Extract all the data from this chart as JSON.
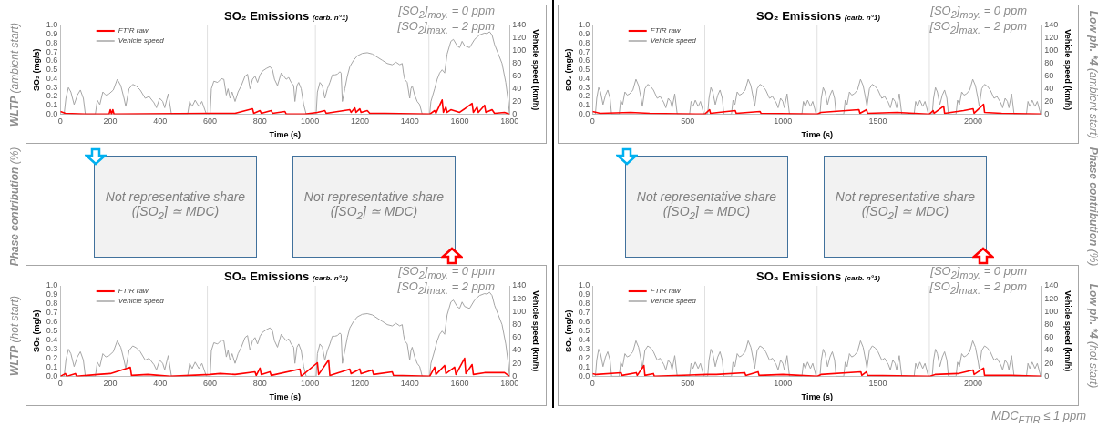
{
  "chart_data": [
    {
      "type": "line",
      "title": "SO₂ Emissions",
      "subtitle": "(carb. n°1)",
      "xlabel": "Time (s)",
      "ylabel": "SO₂ (mg/s)",
      "y2label": "Vehicle speed (km/h)",
      "legend": "top left",
      "marker": "none",
      "annotations": [
        "[SO$_{2}$]$_{moy.}$ = 0 ppm",
        "[SO$_{2}$]$_{max.}$ = 2 ppm",
        "WLTP (ambient start)"
      ],
      "xlim": [
        0,
        1800
      ],
      "xticks": [
        0,
        200,
        400,
        600,
        800,
        1000,
        1200,
        1400,
        1600,
        1800
      ],
      "ylim": [
        0,
        1
      ],
      "yticks": [
        {
          "value": 0,
          "label": "0.0"
        },
        {
          "value": 0.1,
          "label": "0.1"
        },
        {
          "value": 0.2,
          "label": "0.2"
        },
        {
          "value": 0.3,
          "label": "0.3"
        },
        {
          "value": 0.4,
          "label": "0.4"
        },
        {
          "value": 0.5,
          "label": "0.5"
        },
        {
          "value": 0.6,
          "label": "0.6"
        },
        {
          "value": 0.7,
          "label": "0.7"
        },
        {
          "value": 0.8,
          "label": "0.8"
        },
        {
          "value": 0.9,
          "label": "0.9"
        },
        {
          "value": 1,
          "label": "1.0"
        }
      ],
      "y2lim": [
        0,
        140
      ],
      "y2ticks": [
        0,
        20,
        40,
        60,
        80,
        100,
        120,
        140
      ],
      "ref_lines": [
        {
          "axis": "x",
          "value": 589,
          "color": "#e0e0e0"
        },
        {
          "axis": "x",
          "value": 1022,
          "color": "#e0e0e0"
        },
        {
          "axis": "x",
          "value": 1477,
          "color": "#e0e0e0"
        }
      ],
      "series": [
        {
          "name": "FTIR raw",
          "color": "#ff0000",
          "x": [
            0,
            10,
            20,
            100,
            195,
            200,
            205,
            210,
            215,
            600,
            700,
            770,
            775,
            800,
            805,
            845,
            850,
            900,
            905,
            980,
            1030,
            1060,
            1065,
            1160,
            1165,
            1180,
            1185,
            1200,
            1205,
            1230,
            1240,
            1300,
            1480,
            1500,
            1505,
            1530,
            1535,
            1545,
            1550,
            1565,
            1600,
            1650,
            1655,
            1670,
            1675,
            1700,
            1705,
            1730,
            1740,
            1780,
            1800
          ],
          "values": [
            0.03,
            0.02,
            0.01,
            0,
            0,
            0.05,
            0,
            0.05,
            0,
            0.01,
            0.01,
            0.06,
            0.01,
            0.04,
            0.01,
            0.04,
            0.01,
            0.03,
            0,
            0,
            0.02,
            0.04,
            0.01,
            0.05,
            0.02,
            0.07,
            0.02,
            0.06,
            0.02,
            0.04,
            0.01,
            0.01,
            0,
            0.04,
            0.01,
            0.16,
            0.02,
            0.08,
            0.02,
            0.05,
            0.02,
            0.12,
            0.02,
            0.08,
            0.02,
            0.1,
            0.02,
            0.05,
            0.01,
            0.02,
            0
          ]
        },
        {
          "name": "Vehicle speed",
          "color": "#a6a6a6",
          "axis": "y2",
          "x": [
            0,
            15,
            22,
            32,
            42,
            55,
            68,
            80,
            92,
            100,
            140,
            148,
            158,
            170,
            182,
            195,
            212,
            228,
            242,
            255,
            262,
            275,
            290,
            305,
            320,
            340,
            355,
            375,
            385,
            398,
            410,
            418,
            432,
            445,
            510,
            518,
            528,
            540,
            555,
            567,
            585,
            600,
            605,
            615,
            630,
            645,
            655,
            665,
            672,
            680,
            688,
            700,
            712,
            725,
            740,
            750,
            760,
            770,
            780,
            790,
            800,
            810,
            825,
            840,
            850,
            858,
            870,
            885,
            895,
            905,
            915,
            925,
            935,
            940,
            948,
            955,
            965,
            975,
            985,
            1025,
            1030,
            1040,
            1050,
            1060,
            1070,
            1080,
            1090,
            1100,
            1110,
            1120,
            1125,
            1130,
            1140,
            1150,
            1160,
            1175,
            1190,
            1210,
            1230,
            1250,
            1270,
            1290,
            1310,
            1330,
            1345,
            1360,
            1370,
            1375,
            1380,
            1390,
            1400,
            1405,
            1410,
            1420,
            1430,
            1440,
            1450,
            1480,
            1485,
            1500,
            1510,
            1520,
            1530,
            1540,
            1550,
            1565,
            1575,
            1590,
            1600,
            1610,
            1620,
            1640,
            1660,
            1680,
            1700,
            1710,
            1720,
            1730,
            1740,
            1755,
            1770,
            1785,
            1795,
            1800
          ],
          "values": [
            0,
            0,
            25,
            42,
            35,
            15,
            30,
            38,
            25,
            0,
            0,
            22,
            15,
            35,
            30,
            32,
            38,
            55,
            45,
            25,
            12,
            40,
            47,
            44,
            38,
            25,
            28,
            18,
            10,
            25,
            20,
            10,
            32,
            0,
            0,
            20,
            12,
            22,
            12,
            20,
            0,
            0,
            40,
            52,
            50,
            56,
            55,
            30,
            40,
            25,
            35,
            20,
            35,
            45,
            60,
            63,
            40,
            55,
            60,
            50,
            62,
            68,
            72,
            75,
            70,
            55,
            45,
            65,
            60,
            55,
            58,
            50,
            45,
            20,
            45,
            50,
            40,
            15,
            0,
            0,
            35,
            50,
            45,
            25,
            40,
            50,
            62,
            62,
            63,
            67,
            65,
            20,
            40,
            60,
            75,
            85,
            92,
            96,
            97,
            95,
            90,
            85,
            80,
            78,
            82,
            78,
            80,
            65,
            55,
            50,
            25,
            40,
            45,
            30,
            20,
            15,
            0,
            0,
            20,
            40,
            55,
            65,
            70,
            65,
            95,
            115,
            118,
            108,
            105,
            115,
            108,
            105,
            118,
            125,
            128,
            127,
            130,
            125,
            110,
            95,
            80,
            50,
            20,
            0
          ]
        }
      ]
    },
    {
      "type": "line",
      "title": "SO₂ Emissions",
      "subtitle": "(carb. n°1)",
      "xlabel": "Time (s)",
      "ylabel": "SO₂ (mg/s)",
      "y2label": "Vehicle speed (km/h)",
      "legend": "top left",
      "marker": "none",
      "annotations": [
        "[SO$_{2}$]$_{moy.}$ = 0 ppm",
        "[SO$_{2}$]$_{max.}$ = 2 ppm",
        "Low ph. *4 (ambient start)"
      ],
      "xlim": [
        0,
        2360
      ],
      "xticks": [
        0,
        500,
        1000,
        1500,
        2000
      ],
      "ylim": [
        0,
        1
      ],
      "yticks": [
        {
          "value": 0,
          "label": "0.0"
        },
        {
          "value": 0.1,
          "label": "0.1"
        },
        {
          "value": 0.2,
          "label": "0.2"
        },
        {
          "value": 0.3,
          "label": "0.3"
        },
        {
          "value": 0.4,
          "label": "0.4"
        },
        {
          "value": 0.5,
          "label": "0.5"
        },
        {
          "value": 0.6,
          "label": "0.6"
        },
        {
          "value": 0.7,
          "label": "0.7"
        },
        {
          "value": 0.8,
          "label": "0.8"
        },
        {
          "value": 0.9,
          "label": "0.9"
        },
        {
          "value": 1,
          "label": "1.0"
        }
      ],
      "y2lim": [
        0,
        140
      ],
      "y2ticks": [
        0,
        20,
        40,
        60,
        80,
        100,
        120,
        140
      ],
      "ref_lines": [
        {
          "axis": "x",
          "value": 590,
          "color": "#e0e0e0"
        },
        {
          "axis": "x",
          "value": 1180,
          "color": "#e0e0e0"
        },
        {
          "axis": "x",
          "value": 1770,
          "color": "#e0e0e0"
        }
      ],
      "series": [
        {
          "name": "FTIR raw",
          "color": "#ff0000",
          "x": [
            0,
            20,
            40,
            200,
            300,
            590,
            615,
            620,
            750,
            755,
            880,
            885,
            1180,
            1200,
            1400,
            1405,
            1440,
            1445,
            1600,
            1770,
            1790,
            1795,
            1845,
            1850,
            1950,
            2000,
            2005,
            2055,
            2060,
            2150,
            2360
          ],
          "values": [
            0.03,
            0.02,
            0.01,
            0.02,
            0.01,
            0,
            0.05,
            0.01,
            0.04,
            0.01,
            0.03,
            0.01,
            0,
            0.02,
            0.05,
            0.01,
            0.05,
            0.01,
            0.02,
            0,
            0.04,
            0.01,
            0.09,
            0.01,
            0.04,
            0.06,
            0.01,
            0.11,
            0.02,
            0.01,
            0
          ]
        },
        {
          "name": "Vehicle speed",
          "color": "#a6a6a6",
          "axis": "y2",
          "x": [
            0,
            15,
            22,
            32,
            42,
            55,
            68,
            80,
            92,
            100,
            140,
            148,
            158,
            170,
            182,
            195,
            212,
            228,
            242,
            255,
            262,
            275,
            290,
            305,
            320,
            340,
            355,
            375,
            385,
            398,
            410,
            418,
            432,
            445,
            510,
            518,
            528,
            540,
            555,
            567,
            585,
            590,
            605,
            612,
            622,
            632,
            645,
            658,
            670,
            682,
            690,
            730,
            738,
            748,
            760,
            772,
            785,
            802,
            818,
            832,
            845,
            852,
            865,
            880,
            895,
            910,
            930,
            945,
            965,
            975,
            988,
            1000,
            1008,
            1022,
            1035,
            1100,
            1108,
            1118,
            1130,
            1145,
            1157,
            1175,
            1180,
            1195,
            1202,
            1212,
            1222,
            1235,
            1248,
            1260,
            1272,
            1280,
            1320,
            1328,
            1338,
            1350,
            1362,
            1375,
            1392,
            1408,
            1422,
            1435,
            1442,
            1455,
            1470,
            1485,
            1500,
            1520,
            1535,
            1555,
            1565,
            1578,
            1590,
            1598,
            1612,
            1625,
            1690,
            1698,
            1708,
            1720,
            1735,
            1747,
            1765,
            1770,
            1785,
            1792,
            1802,
            1812,
            1825,
            1838,
            1850,
            1862,
            1870,
            1910,
            1918,
            1928,
            1940,
            1952,
            1965,
            1982,
            1998,
            2012,
            2025,
            2032,
            2045,
            2060,
            2075,
            2090,
            2110,
            2125,
            2145,
            2155,
            2168,
            2180,
            2188,
            2202,
            2215,
            2280,
            2288,
            2298,
            2310,
            2325,
            2337,
            2355
          ],
          "values": [
            0,
            0,
            25,
            42,
            35,
            15,
            30,
            38,
            25,
            0,
            0,
            22,
            15,
            35,
            30,
            32,
            38,
            55,
            45,
            25,
            12,
            40,
            47,
            44,
            38,
            25,
            28,
            18,
            10,
            25,
            20,
            10,
            32,
            0,
            0,
            20,
            12,
            22,
            12,
            20,
            0,
            0,
            0,
            25,
            42,
            35,
            15,
            30,
            38,
            25,
            0,
            0,
            22,
            15,
            35,
            30,
            32,
            38,
            55,
            45,
            25,
            12,
            40,
            47,
            44,
            38,
            25,
            28,
            18,
            10,
            25,
            20,
            10,
            32,
            0,
            0,
            20,
            12,
            22,
            12,
            20,
            0,
            0,
            0,
            25,
            42,
            35,
            15,
            30,
            38,
            25,
            0,
            0,
            22,
            15,
            35,
            30,
            32,
            38,
            55,
            45,
            25,
            12,
            40,
            47,
            44,
            38,
            25,
            28,
            18,
            10,
            25,
            20,
            10,
            32,
            0,
            0,
            20,
            12,
            22,
            12,
            20,
            0,
            0,
            0,
            25,
            42,
            35,
            15,
            30,
            38,
            25,
            0,
            0,
            22,
            15,
            35,
            30,
            32,
            38,
            55,
            45,
            25,
            12,
            40,
            47,
            44,
            38,
            25,
            28,
            18,
            10,
            25,
            20,
            10,
            32,
            0,
            0,
            20,
            12,
            22,
            12,
            20,
            0
          ]
        }
      ]
    },
    {
      "type": "other",
      "title": "Not representative share",
      "annotations": [
        "([SO$_{2}$] ≃ MDC)",
        "Phase contribution (%)"
      ]
    },
    {
      "type": "other",
      "title": "Not representative share",
      "annotations": [
        "([SO$_{2}$] ≃ MDC)"
      ]
    },
    {
      "type": "other",
      "title": "Not representative share",
      "annotations": [
        "([SO$_{2}$] ≃ MDC)"
      ]
    },
    {
      "type": "other",
      "title": "Not representative share",
      "annotations": [
        "([SO$_{2}$] ≃ MDC)",
        "Phase contribution (%)"
      ]
    },
    {
      "type": "line",
      "title": "SO₂ Emissions",
      "subtitle": "(carb. n°1)",
      "xlabel": "Time (s)",
      "ylabel": "SO₂ (mg/s)",
      "y2label": "Vehicle speed (km/h)",
      "legend": "top left",
      "marker": "none",
      "annotations": [
        "[SO$_{2}$]$_{moy.}$ = 0 ppm",
        "[SO$_{2}$]$_{max.}$ = 2 ppm",
        "WLTP (hot start)"
      ],
      "xlim": [
        0,
        1800
      ],
      "xticks": [
        0,
        200,
        400,
        600,
        800,
        1000,
        1200,
        1400,
        1600,
        1800
      ],
      "ylim": [
        0,
        1
      ],
      "yticks": [
        {
          "value": 0,
          "label": "0.0"
        },
        {
          "value": 0.1,
          "label": "0.1"
        },
        {
          "value": 0.2,
          "label": "0.2"
        },
        {
          "value": 0.3,
          "label": "0.3"
        },
        {
          "value": 0.4,
          "label": "0.4"
        },
        {
          "value": 0.5,
          "label": "0.5"
        },
        {
          "value": 0.6,
          "label": "0.6"
        },
        {
          "value": 0.7,
          "label": "0.7"
        },
        {
          "value": 0.8,
          "label": "0.8"
        },
        {
          "value": 0.9,
          "label": "0.9"
        },
        {
          "value": 1,
          "label": "1.0"
        }
      ],
      "y2lim": [
        0,
        140
      ],
      "y2ticks": [
        0,
        20,
        40,
        60,
        80,
        100,
        120,
        140
      ],
      "ref_lines": [
        {
          "axis": "x",
          "value": 589,
          "color": "#e0e0e0"
        },
        {
          "axis": "x",
          "value": 1022,
          "color": "#e0e0e0"
        },
        {
          "axis": "x",
          "value": 1477,
          "color": "#e0e0e0"
        }
      ],
      "series": [
        {
          "name": "FTIR raw",
          "color": "#ff0000",
          "x": [
            0,
            20,
            25,
            60,
            65,
            150,
            200,
            280,
            285,
            350,
            440,
            600,
            640,
            700,
            780,
            785,
            800,
            805,
            840,
            845,
            960,
            965,
            1030,
            1035,
            1075,
            1080,
            1160,
            1165,
            1200,
            1205,
            1250,
            1255,
            1330,
            1335,
            1480,
            1500,
            1505,
            1540,
            1545,
            1580,
            1585,
            1620,
            1625,
            1650,
            1655,
            1700,
            1780,
            1800
          ],
          "values": [
            0,
            0.03,
            0,
            0.03,
            0,
            0.02,
            0.03,
            0.1,
            0.01,
            0.02,
            0,
            0.02,
            0.03,
            0.02,
            0.05,
            0.01,
            0.09,
            0.02,
            0.05,
            0.01,
            0.08,
            0,
            0.15,
            0.02,
            0.18,
            0.01,
            0.08,
            0.03,
            0.08,
            0.03,
            0.07,
            0.02,
            0.05,
            0.01,
            0,
            0.1,
            0.02,
            0.12,
            0.03,
            0.1,
            0.02,
            0.2,
            0.03,
            0.13,
            0.02,
            0.04,
            0.04,
            0
          ]
        },
        {
          "name": "Vehicle speed",
          "color": "#a6a6a6",
          "axis": "y2",
          "x": [
            0,
            15,
            22,
            32,
            42,
            55,
            68,
            80,
            92,
            100,
            140,
            148,
            158,
            170,
            182,
            195,
            212,
            228,
            242,
            255,
            262,
            275,
            290,
            305,
            320,
            340,
            355,
            375,
            385,
            398,
            410,
            418,
            432,
            445,
            510,
            518,
            528,
            540,
            555,
            567,
            585,
            600,
            605,
            615,
            630,
            645,
            655,
            665,
            672,
            680,
            688,
            700,
            712,
            725,
            740,
            750,
            760,
            770,
            780,
            790,
            800,
            810,
            825,
            840,
            850,
            858,
            870,
            885,
            895,
            905,
            915,
            925,
            935,
            940,
            948,
            955,
            965,
            975,
            985,
            1025,
            1030,
            1040,
            1050,
            1060,
            1070,
            1080,
            1090,
            1100,
            1110,
            1120,
            1125,
            1130,
            1140,
            1150,
            1160,
            1175,
            1190,
            1210,
            1230,
            1250,
            1270,
            1290,
            1310,
            1330,
            1345,
            1360,
            1370,
            1375,
            1380,
            1390,
            1400,
            1405,
            1410,
            1420,
            1430,
            1440,
            1450,
            1480,
            1485,
            1500,
            1510,
            1520,
            1530,
            1540,
            1550,
            1565,
            1575,
            1590,
            1600,
            1610,
            1620,
            1640,
            1660,
            1680,
            1700,
            1710,
            1720,
            1730,
            1740,
            1755,
            1770,
            1785,
            1795,
            1800
          ],
          "values": [
            0,
            0,
            25,
            42,
            35,
            15,
            30,
            38,
            25,
            0,
            0,
            22,
            15,
            35,
            30,
            32,
            38,
            55,
            45,
            25,
            12,
            40,
            47,
            44,
            38,
            25,
            28,
            18,
            10,
            25,
            20,
            10,
            32,
            0,
            0,
            20,
            12,
            22,
            12,
            20,
            0,
            0,
            40,
            52,
            50,
            56,
            55,
            30,
            40,
            25,
            35,
            20,
            35,
            45,
            60,
            63,
            40,
            55,
            60,
            50,
            62,
            68,
            72,
            75,
            70,
            55,
            45,
            65,
            60,
            55,
            58,
            50,
            45,
            20,
            45,
            50,
            40,
            15,
            0,
            0,
            35,
            50,
            45,
            25,
            40,
            50,
            62,
            62,
            63,
            67,
            65,
            20,
            40,
            60,
            75,
            85,
            92,
            96,
            97,
            95,
            90,
            85,
            80,
            78,
            82,
            78,
            80,
            65,
            55,
            50,
            25,
            40,
            45,
            30,
            20,
            15,
            0,
            0,
            20,
            40,
            55,
            65,
            70,
            65,
            95,
            115,
            118,
            108,
            105,
            115,
            108,
            105,
            118,
            125,
            128,
            127,
            130,
            125,
            110,
            95,
            80,
            50,
            20,
            0
          ]
        }
      ]
    },
    {
      "type": "line",
      "title": "SO₂ Emissions",
      "subtitle": "(carb. n°1)",
      "xlabel": "Time (s)",
      "ylabel": "SO₂ (mg/s)",
      "y2label": "Vehicle speed (km/h)",
      "legend": "top left",
      "marker": "none",
      "annotations": [
        "[SO$_{2}$]$_{moy.}$ = 0 ppm",
        "[SO$_{2}$]$_{max.}$ = 2 ppm",
        "Low ph. *4 (hot start)",
        "MDC$_{FTIR}$ ≤ 1 ppm"
      ],
      "xlim": [
        0,
        2360
      ],
      "xticks": [
        0,
        500,
        1000,
        1500,
        2000
      ],
      "ylim": [
        0,
        1
      ],
      "yticks": [
        {
          "value": 0,
          "label": "0.0"
        },
        {
          "value": 0.1,
          "label": "0.1"
        },
        {
          "value": 0.2,
          "label": "0.2"
        },
        {
          "value": 0.3,
          "label": "0.3"
        },
        {
          "value": 0.4,
          "label": "0.4"
        },
        {
          "value": 0.5,
          "label": "0.5"
        },
        {
          "value": 0.6,
          "label": "0.6"
        },
        {
          "value": 0.7,
          "label": "0.7"
        },
        {
          "value": 0.8,
          "label": "0.8"
        },
        {
          "value": 0.9,
          "label": "0.9"
        },
        {
          "value": 1,
          "label": "1.0"
        }
      ],
      "y2lim": [
        0,
        140
      ],
      "y2ticks": [
        0,
        20,
        40,
        60,
        80,
        100,
        120,
        140
      ],
      "ref_lines": [
        {
          "axis": "x",
          "value": 590,
          "color": "#e0e0e0"
        },
        {
          "axis": "x",
          "value": 1180,
          "color": "#e0e0e0"
        },
        {
          "axis": "x",
          "value": 1770,
          "color": "#e0e0e0"
        }
      ],
      "series": [
        {
          "name": "FTIR raw",
          "color": "#ff0000",
          "x": [
            0,
            20,
            150,
            155,
            230,
            235,
            270,
            275,
            320,
            325,
            600,
            650,
            800,
            805,
            870,
            875,
            1000,
            1180,
            1200,
            1410,
            1415,
            1440,
            1445,
            1770,
            1800,
            1920,
            2000,
            2005,
            2055,
            2060,
            2200,
            2360
          ],
          "values": [
            0.03,
            0.02,
            0.04,
            0.01,
            0.04,
            0.01,
            0.12,
            0.01,
            0.03,
            0,
            0.02,
            0.02,
            0.04,
            0.01,
            0.05,
            0.01,
            0.02,
            0,
            0.02,
            0.05,
            0.01,
            0.05,
            0.01,
            0,
            0.02,
            0.03,
            0.07,
            0.02,
            0.09,
            0.01,
            0.01,
            0
          ]
        },
        {
          "name": "Vehicle speed",
          "color": "#a6a6a6",
          "axis": "y2",
          "x": [
            0,
            15,
            22,
            32,
            42,
            55,
            68,
            80,
            92,
            100,
            140,
            148,
            158,
            170,
            182,
            195,
            212,
            228,
            242,
            255,
            262,
            275,
            290,
            305,
            320,
            340,
            355,
            375,
            385,
            398,
            410,
            418,
            432,
            445,
            510,
            518,
            528,
            540,
            555,
            567,
            585,
            590,
            605,
            612,
            622,
            632,
            645,
            658,
            670,
            682,
            690,
            730,
            738,
            748,
            760,
            772,
            785,
            802,
            818,
            832,
            845,
            852,
            865,
            880,
            895,
            910,
            930,
            945,
            965,
            975,
            988,
            1000,
            1008,
            1022,
            1035,
            1100,
            1108,
            1118,
            1130,
            1145,
            1157,
            1175,
            1180,
            1195,
            1202,
            1212,
            1222,
            1235,
            1248,
            1260,
            1272,
            1280,
            1320,
            1328,
            1338,
            1350,
            1362,
            1375,
            1392,
            1408,
            1422,
            1435,
            1442,
            1455,
            1470,
            1485,
            1500,
            1520,
            1535,
            1555,
            1565,
            1578,
            1590,
            1598,
            1612,
            1625,
            1690,
            1698,
            1708,
            1720,
            1735,
            1747,
            1765,
            1770,
            1785,
            1792,
            1802,
            1812,
            1825,
            1838,
            1850,
            1862,
            1870,
            1910,
            1918,
            1928,
            1940,
            1952,
            1965,
            1982,
            1998,
            2012,
            2025,
            2032,
            2045,
            2060,
            2075,
            2090,
            2110,
            2125,
            2145,
            2155,
            2168,
            2180,
            2188,
            2202,
            2215,
            2280,
            2288,
            2298,
            2310,
            2325,
            2337,
            2355
          ],
          "values": [
            0,
            0,
            25,
            42,
            35,
            15,
            30,
            38,
            25,
            0,
            0,
            22,
            15,
            35,
            30,
            32,
            38,
            55,
            45,
            25,
            12,
            40,
            47,
            44,
            38,
            25,
            28,
            18,
            10,
            25,
            20,
            10,
            32,
            0,
            0,
            20,
            12,
            22,
            12,
            20,
            0,
            0,
            0,
            25,
            42,
            35,
            15,
            30,
            38,
            25,
            0,
            0,
            22,
            15,
            35,
            30,
            32,
            38,
            55,
            45,
            25,
            12,
            40,
            47,
            44,
            38,
            25,
            28,
            18,
            10,
            25,
            20,
            10,
            32,
            0,
            0,
            20,
            12,
            22,
            12,
            20,
            0,
            0,
            0,
            25,
            42,
            35,
            15,
            30,
            38,
            25,
            0,
            0,
            22,
            15,
            35,
            30,
            32,
            38,
            55,
            45,
            25,
            12,
            40,
            47,
            44,
            38,
            25,
            28,
            18,
            10,
            25,
            20,
            10,
            32,
            0,
            0,
            20,
            12,
            22,
            12,
            20,
            0,
            0,
            0,
            25,
            42,
            35,
            15,
            30,
            38,
            25,
            0,
            0,
            22,
            15,
            35,
            30,
            32,
            38,
            55,
            45,
            25,
            12,
            40,
            47,
            44,
            38,
            25,
            28,
            18,
            10,
            25,
            20,
            10,
            32,
            0,
            0,
            20,
            12,
            22,
            12,
            20,
            0
          ]
        }
      ]
    }
  ]
}
